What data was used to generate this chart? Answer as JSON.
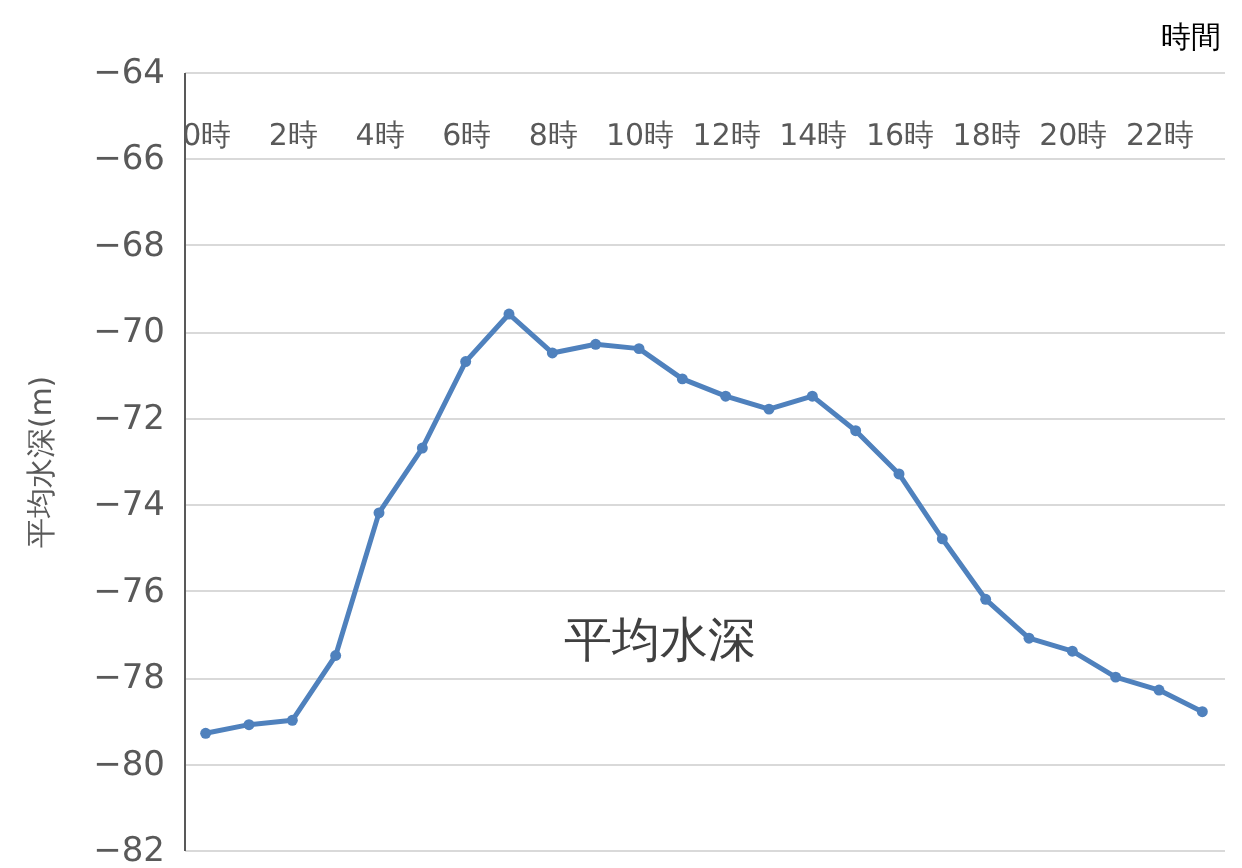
{
  "chart_data": {
    "type": "line",
    "xlabel": "時間",
    "ylabel": "平均水深(m)",
    "categories": [
      "0時",
      null,
      "2時",
      null,
      "4時",
      null,
      "6時",
      null,
      "8時",
      null,
      "10時",
      null,
      "12時",
      null,
      "14時",
      null,
      "16時",
      null,
      "18時",
      null,
      "20時",
      null,
      "22時",
      null
    ],
    "series": [
      {
        "name": "平均水深",
        "color": "#4f81bd",
        "values": [
          -79.3,
          -79.1,
          -79.0,
          -77.5,
          -74.2,
          -72.7,
          -70.7,
          -69.6,
          -70.5,
          -70.3,
          -70.4,
          -71.1,
          -71.5,
          -71.8,
          -71.5,
          -72.3,
          -73.3,
          -74.8,
          -76.2,
          -77.1,
          -77.4,
          -78.0,
          -78.3,
          -78.8
        ]
      }
    ],
    "ylim": [
      -82,
      -64
    ],
    "yticks": [
      -82,
      -80,
      -78,
      -76,
      -74,
      -72,
      -70,
      -68,
      -66,
      -64
    ],
    "grid": "y",
    "marker": "circle",
    "line_style": "solid"
  }
}
